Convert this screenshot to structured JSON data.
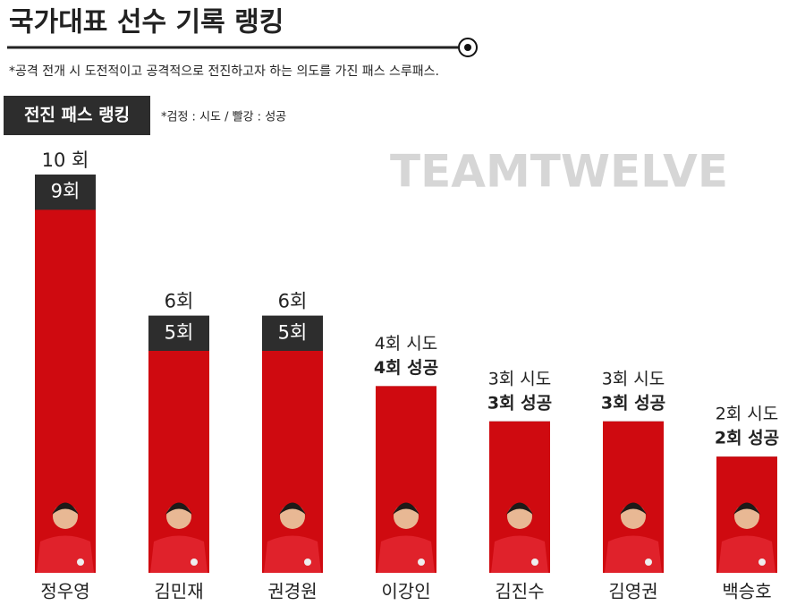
{
  "chart_data": {
    "type": "bar",
    "title": "국가대표 선수 기록 랭킹",
    "subtitle": "*공격 전개 시 도전적이고 공격적으로 전진하고자 하는 의도를 가진 패스 스루패스.",
    "badge": "전진 패스 랭킹",
    "note": "*검정 : 시도 / 빨강 : 성공",
    "watermark": "TEAMTWELVE",
    "categories": [
      "정우영",
      "김민재",
      "권경원",
      "이강인",
      "김진수",
      "김영권",
      "백승호"
    ],
    "ylim": [
      0,
      10
    ],
    "series": [
      {
        "color": "#2d2d2d",
        "values": [
          10,
          6,
          6,
          4,
          3,
          3,
          2
        ],
        "value_labels": [
          "10 회",
          "6회",
          "6회",
          "4회 시도",
          "3회 시도",
          "3회 시도",
          "2회 시도"
        ]
      },
      {
        "color": "#cf0a10",
        "values": [
          9,
          5,
          5,
          4,
          3,
          3,
          2
        ],
        "value_labels": [
          "9회",
          "5회",
          "5회",
          "4회 성공",
          "3회 성공",
          "3회 성공",
          "2회 성공"
        ]
      }
    ]
  }
}
